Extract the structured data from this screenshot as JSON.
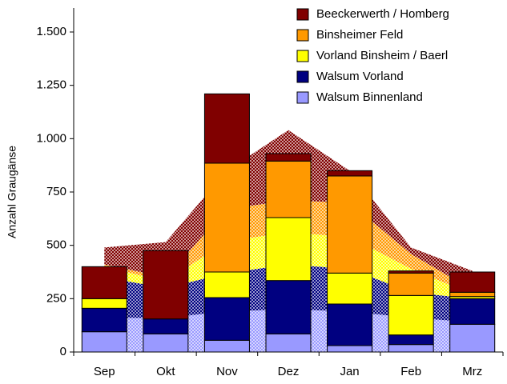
{
  "chart_data": {
    "type": "bar",
    "stacked": true,
    "y_label": "Anzahl Graugänse",
    "categories": [
      "Sep",
      "Okt",
      "Nov",
      "Dez",
      "Jan",
      "Feb",
      "Mrz"
    ],
    "series": [
      {
        "name": "Walsum Binnenland",
        "color": "#9999ff",
        "values": [
          95,
          85,
          55,
          85,
          30,
          35,
          130
        ],
        "area_values": [
          160,
          160,
          190,
          200,
          190,
          160,
          140
        ]
      },
      {
        "name": "Walsum Vorland",
        "color": "#000080",
        "values": [
          110,
          70,
          200,
          250,
          195,
          45,
          120
        ],
        "area_values": [
          190,
          140,
          180,
          210,
          200,
          120,
          110
        ]
      },
      {
        "name": "Vorland Binsheim / Baerl",
        "color": "#ffff00",
        "values": [
          45,
          0,
          120,
          295,
          145,
          185,
          10
        ],
        "area_values": [
          50,
          30,
          150,
          150,
          150,
          110,
          20
        ]
      },
      {
        "name": "Binsheimer Feld",
        "color": "#ff9900",
        "values": [
          0,
          0,
          510,
          265,
          455,
          105,
          20
        ],
        "area_values": [
          10,
          20,
          150,
          150,
          160,
          70,
          20
        ]
      },
      {
        "name": "Beeckerwerth / Homberg",
        "color": "#800000",
        "values": [
          150,
          320,
          325,
          35,
          25,
          10,
          95
        ],
        "area_values": [
          80,
          165,
          180,
          330,
          150,
          30,
          90
        ]
      }
    ],
    "ylim": [
      0,
      1500
    ],
    "yticks": [
      0,
      250,
      500,
      750,
      {
        "value": 1000,
        "label": "1.000"
      },
      {
        "value": 1250,
        "label": "1.250"
      },
      {
        "value": 1500,
        "label": "1.500"
      }
    ],
    "legend": "top-right"
  }
}
